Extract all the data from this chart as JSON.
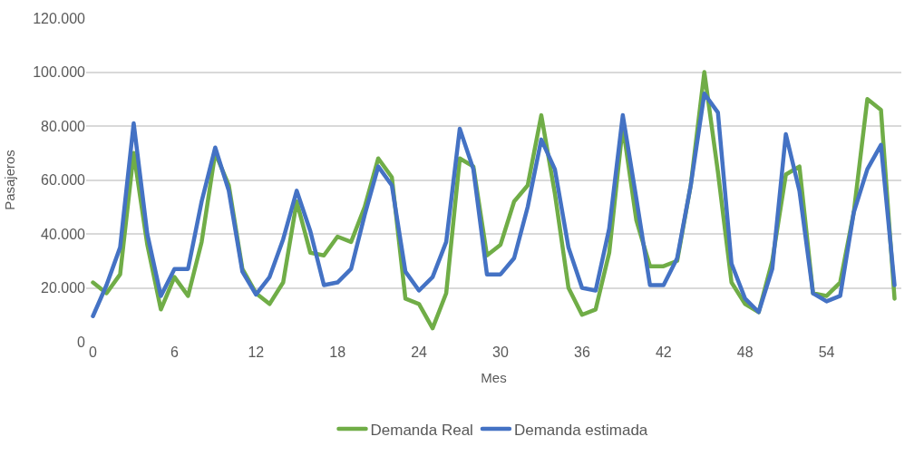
{
  "chart_data": {
    "type": "line",
    "xlabel": "Mes",
    "ylabel": "Pasajeros",
    "x": [
      0,
      1,
      2,
      3,
      4,
      5,
      6,
      7,
      8,
      9,
      10,
      11,
      12,
      13,
      14,
      15,
      16,
      17,
      18,
      19,
      20,
      21,
      22,
      23,
      24,
      25,
      26,
      27,
      28,
      29,
      30,
      31,
      32,
      33,
      34,
      35,
      36,
      37,
      38,
      39,
      40,
      41,
      42,
      43,
      44,
      45,
      46,
      47,
      48,
      49,
      50,
      51,
      52,
      53,
      54,
      55,
      56,
      57,
      58,
      59
    ],
    "series": [
      {
        "name": "Demanda Real",
        "color": "#70ad47",
        "values": [
          22000,
          18000,
          25000,
          70000,
          36000,
          12000,
          24000,
          17000,
          37000,
          70000,
          58000,
          27000,
          18000,
          14000,
          22000,
          52000,
          33000,
          32000,
          39000,
          37000,
          50000,
          68000,
          61000,
          16000,
          14000,
          5000,
          18000,
          68000,
          65000,
          32000,
          36000,
          52000,
          58000,
          84000,
          55000,
          20000,
          10000,
          12000,
          33000,
          80000,
          45000,
          28000,
          28000,
          30000,
          58000,
          100000,
          63000,
          22000,
          14000,
          11000,
          30000,
          62000,
          65000,
          18000,
          17000,
          22000,
          48000,
          90000,
          86000,
          16000
        ]
      },
      {
        "name": "Demanda estimada",
        "color": "#4472c4",
        "values": [
          9500,
          21000,
          35000,
          81000,
          40000,
          17000,
          27000,
          27000,
          52000,
          72000,
          56000,
          26000,
          17500,
          24000,
          38000,
          56000,
          41000,
          21000,
          22000,
          27000,
          47000,
          65000,
          58000,
          26000,
          19000,
          24000,
          37000,
          79000,
          64000,
          25000,
          25000,
          31000,
          50000,
          75000,
          64000,
          35000,
          20000,
          19000,
          42000,
          84000,
          53000,
          21000,
          21000,
          31000,
          58000,
          92000,
          85000,
          29000,
          16000,
          11000,
          27000,
          77000,
          56000,
          18000,
          15000,
          17000,
          48000,
          64000,
          73000,
          21000
        ]
      }
    ],
    "xlim": [
      -0.5,
      59.5
    ],
    "xticks": [
      0,
      6,
      12,
      18,
      24,
      30,
      36,
      42,
      48,
      54
    ],
    "ylim": [
      0,
      120000
    ],
    "yticks": [
      {
        "value": 0,
        "label": "0"
      },
      {
        "value": 20000,
        "label": "20.000"
      },
      {
        "value": 40000,
        "label": "40.000"
      },
      {
        "value": 60000,
        "label": "60.000"
      },
      {
        "value": 80000,
        "label": "80.000"
      },
      {
        "value": 100000,
        "label": "100.000"
      },
      {
        "value": 120000,
        "label": "120.000"
      }
    ],
    "grid": "y",
    "legend": "bottom",
    "marker": "none",
    "line_style": "solid"
  }
}
